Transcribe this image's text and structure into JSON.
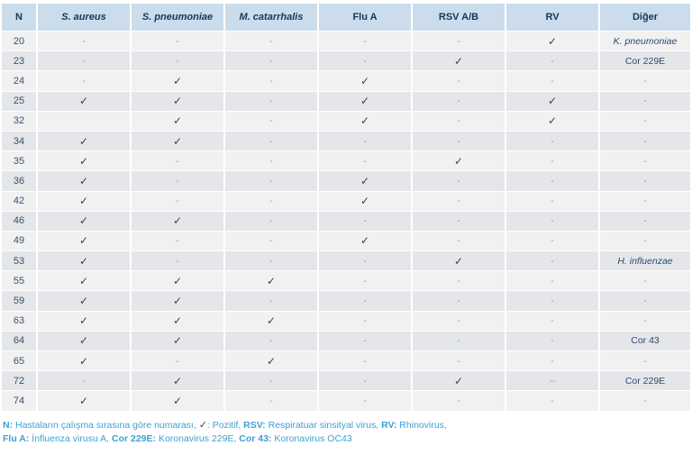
{
  "table": {
    "columns": [
      {
        "key": "n",
        "label": "N",
        "italic": false
      },
      {
        "key": "s_aureus",
        "label": "S. aureus",
        "italic": true
      },
      {
        "key": "s_pneumoniae",
        "label": "S. pneumoniae",
        "italic": true
      },
      {
        "key": "m_catarrhalis",
        "label": "M. catarrhalis",
        "italic": true
      },
      {
        "key": "flu_a",
        "label": "Flu A",
        "italic": false
      },
      {
        "key": "rsv_ab",
        "label": "RSV A/B",
        "italic": false
      },
      {
        "key": "rv",
        "label": "RV",
        "italic": false
      },
      {
        "key": "diger",
        "label": "Diğer",
        "italic": false
      }
    ],
    "positive_symbol": "✓",
    "negative_symbol": "-",
    "italic_terms": [
      "K. pneumoniae",
      "H. influenzae"
    ],
    "rows": [
      {
        "n": "20",
        "cells": [
          "-",
          "-",
          "-",
          "-",
          "-",
          "✓",
          "K. pneumoniae"
        ]
      },
      {
        "n": "23",
        "cells": [
          "-",
          "-",
          "-",
          "-",
          "✓",
          "-",
          "Cor 229E"
        ]
      },
      {
        "n": "24",
        "cells": [
          "-",
          "✓",
          "-",
          "✓",
          "-",
          "-",
          "-"
        ]
      },
      {
        "n": "25",
        "cells": [
          "✓",
          "✓",
          "-",
          "✓",
          "-",
          "✓",
          "-"
        ]
      },
      {
        "n": "32",
        "cells": [
          "",
          "✓",
          "-",
          "✓",
          "-",
          "✓",
          "-"
        ]
      },
      {
        "n": "34",
        "cells": [
          "✓",
          "✓",
          "-",
          "-",
          "-",
          "-",
          "-"
        ]
      },
      {
        "n": "35",
        "cells": [
          "✓",
          "-",
          "-",
          "-",
          "✓",
          "-",
          "-"
        ]
      },
      {
        "n": "36",
        "cells": [
          "✓",
          "-",
          "-",
          "✓",
          "-",
          "-",
          "-"
        ]
      },
      {
        "n": "42",
        "cells": [
          "✓",
          "-",
          "-",
          "✓",
          "-",
          "-",
          "-"
        ]
      },
      {
        "n": "46",
        "cells": [
          "✓",
          "✓",
          "-",
          "-",
          "-",
          "-",
          "-"
        ]
      },
      {
        "n": "49",
        "cells": [
          "✓",
          "-",
          "-",
          "✓",
          "-",
          "-",
          "-"
        ]
      },
      {
        "n": "53",
        "cells": [
          "✓",
          "-",
          "-",
          "-",
          "✓",
          "-",
          "H. influenzae"
        ]
      },
      {
        "n": "55",
        "cells": [
          "✓",
          "✓",
          "✓",
          "-",
          "-",
          "-",
          "-"
        ]
      },
      {
        "n": "59",
        "cells": [
          "✓",
          "✓",
          "-",
          "-",
          "-",
          "-",
          "-"
        ]
      },
      {
        "n": "63",
        "cells": [
          "✓",
          "✓",
          "✓",
          "-",
          "-",
          "-",
          "-"
        ]
      },
      {
        "n": "64",
        "cells": [
          "✓",
          "✓",
          "-",
          "-",
          "-",
          "-",
          "Cor 43"
        ]
      },
      {
        "n": "65",
        "cells": [
          "✓",
          "-",
          "✓",
          "-",
          "-",
          "-",
          "-"
        ]
      },
      {
        "n": "72",
        "cells": [
          "-",
          "✓",
          "-",
          "-",
          "✓",
          "--",
          "Cor 229E"
        ]
      },
      {
        "n": "74",
        "cells": [
          "✓",
          "✓",
          "-",
          "-",
          "-",
          "-",
          "-"
        ]
      }
    ]
  },
  "footer": {
    "lines": [
      [
        {
          "text": "N:",
          "bold": true
        },
        {
          "text": " Hastaların çalışma sırasına göre numarası, "
        },
        {
          "text": "✓",
          "check": true
        },
        {
          "text": ": Pozitif, "
        },
        {
          "text": "RSV:",
          "bold": true
        },
        {
          "text": " Respiratuar sinsityal virus, "
        },
        {
          "text": "RV:",
          "bold": true
        },
        {
          "text": " Rhinovirus,"
        }
      ],
      [
        {
          "text": "Flu A:",
          "bold": true
        },
        {
          "text": " İnfluenza virusu A, "
        },
        {
          "text": "Cor 229E:",
          "bold": true
        },
        {
          "text": " Koronavirus 229E, "
        },
        {
          "text": "Cor 43:",
          "bold": true
        },
        {
          "text": " Koronavirus OC43"
        }
      ]
    ]
  },
  "colors": {
    "header_bg": "#cbdcec",
    "header_text": "#17365d",
    "row_light": "#f1f1f2",
    "row_dark": "#e4e6e9",
    "dash": "#8b97ab",
    "check": "#3e4145",
    "n_text": "#35526f",
    "other_text": "#2b4d6f",
    "footer_text": "#3ba1d4"
  }
}
